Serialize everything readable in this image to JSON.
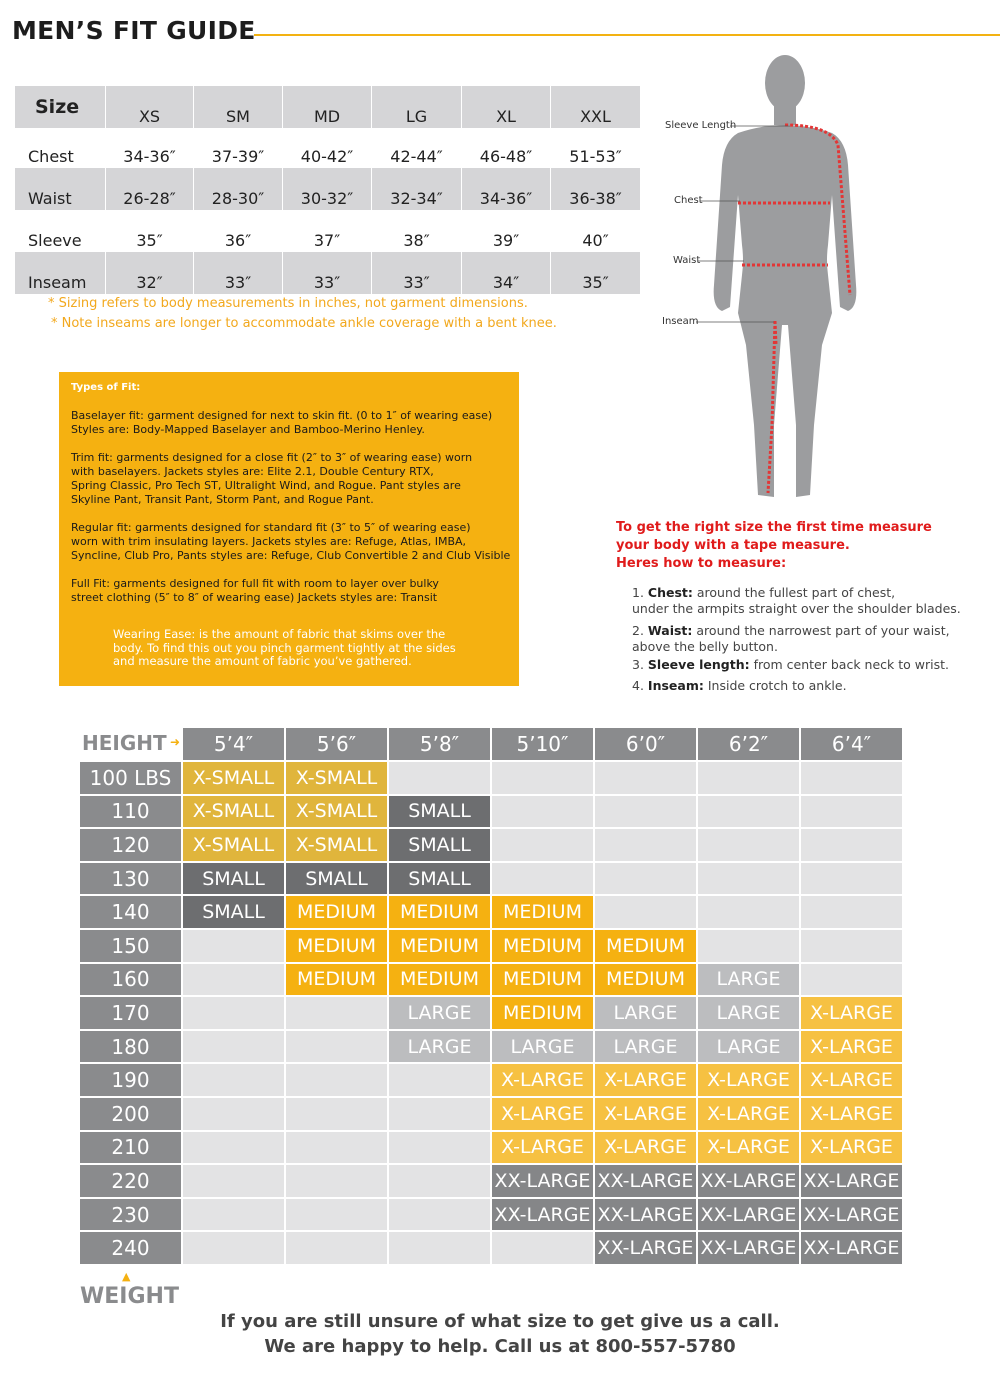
{
  "title": "MEN’S FIT GUIDE",
  "size_table": {
    "header": [
      "Size",
      "XS",
      "SM",
      "MD",
      "LG",
      "XL",
      "XXL"
    ],
    "rows": [
      [
        "Chest",
        "34-36″",
        "37-39″",
        "40-42″",
        "42-44″",
        "46-48″",
        "51-53″"
      ],
      [
        "Waist",
        "26-28″",
        "28-30″",
        "30-32″",
        "32-34″",
        "34-36″",
        "36-38″"
      ],
      [
        "Sleeve",
        "35″",
        "36″",
        "37″",
        "38″",
        "39″",
        "40″"
      ],
      [
        "Inseam",
        "32″",
        "33″",
        "33″",
        "33″",
        "34″",
        "35″"
      ]
    ],
    "notes": [
      "* Sizing refers to body measurements in inches, not garment dimensions.",
      "* Note inseams are longer to accommodate ankle coverage with a bent knee."
    ]
  },
  "fit_types": {
    "title": "Types of Fit:",
    "paragraphs": [
      [
        "Baselayer fit: garment designed for next to skin fit. (0 to 1″ of wearing ease)",
        "Styles are: Body-Mapped Baselayer and Bamboo-Merino Henley."
      ],
      [
        "Trim fit: garments designed for a close fit (2″ to 3″ of wearing ease) worn",
        "with baselayers. Jackets styles are:  Elite 2.1, Double Century RTX,",
        "Spring Classic, Pro Tech ST, Ultralight Wind, and Rogue.  Pant styles are",
        "Skyline Pant, Transit Pant, Storm Pant, and Rogue Pant."
      ],
      [
        "Regular fit: garments designed for standard fit (3″ to 5″ of wearing ease)",
        "worn with trim insulating layers. Jackets styles are: Refuge, Atlas, IMBA,",
        "Syncline, Club Pro, Pants styles are: Refuge, Club Convertible 2 and Club Visible"
      ],
      [
        "Full Fit: garments designed for full fit with room to layer over bulky",
        "street clothing (5″ to 8″ of wearing ease)  Jackets styles are: Transit"
      ]
    ],
    "wearing_ease": [
      "Wearing Ease:  is the amount of fabric that skims over the",
      "body. To find this out you pinch garment tightly at the sides",
      "and measure the amount of fabric you’ve gathered."
    ]
  },
  "figure_labels": [
    "Sleeve Length",
    "Chest",
    "Waist",
    "Inseam"
  ],
  "measure": {
    "heading": [
      "To get the right size the first time measure",
      "your body with a tape measure.",
      "Heres how to measure:"
    ],
    "items": [
      {
        "number": "1.",
        "term": "Chest:",
        "lines": [
          "around the fullest part of chest,",
          "under the armpits straight over the shoulder blades."
        ]
      },
      {
        "number": "2.",
        "term": "Waist:",
        "lines": [
          "around the narrowest part of your waist,",
          "above the belly button."
        ]
      },
      {
        "number": "3.",
        "term": "Sleeve length:",
        "lines": [
          "from center back neck to wrist."
        ]
      },
      {
        "number": "4.",
        "term": "Inseam:",
        "lines": [
          "Inside crotch to ankle."
        ]
      }
    ]
  },
  "weight_chart": {
    "height_label": "HEIGHT",
    "weight_label": "WEIGHT",
    "heights": [
      "5’4″",
      "5’6″",
      "5’8″",
      "5’10″",
      "6’0″",
      "6’2″",
      "6’4″"
    ],
    "weights": [
      "100 LBS",
      "110",
      "120",
      "130",
      "140",
      "150",
      "160",
      "170",
      "180",
      "190",
      "200",
      "210",
      "220",
      "230",
      "240"
    ],
    "size_colors": {
      "X-SMALL": "#e0b53c",
      "SMALL": "#6d6e70",
      "MEDIUM": "#f5b111",
      "LARGE": "#bcbdbf",
      "X-LARGE": "#f6c142",
      "XX-LARGE": "#858688"
    },
    "cells": [
      [
        "X-SMALL",
        "X-SMALL",
        null,
        null,
        null,
        null,
        null
      ],
      [
        "X-SMALL",
        "X-SMALL",
        "SMALL",
        null,
        null,
        null,
        null
      ],
      [
        "X-SMALL",
        "X-SMALL",
        "SMALL",
        null,
        null,
        null,
        null
      ],
      [
        "SMALL",
        "SMALL",
        "SMALL",
        null,
        null,
        null,
        null
      ],
      [
        "SMALL",
        "MEDIUM",
        "MEDIUM",
        "MEDIUM",
        null,
        null,
        null
      ],
      [
        null,
        "MEDIUM",
        "MEDIUM",
        "MEDIUM",
        "MEDIUM",
        null,
        null
      ],
      [
        null,
        "MEDIUM",
        "MEDIUM",
        "MEDIUM",
        "MEDIUM",
        "LARGE",
        null
      ],
      [
        null,
        null,
        "LARGE",
        "MEDIUM",
        "LARGE",
        "LARGE",
        "X-LARGE"
      ],
      [
        null,
        null,
        "LARGE",
        "LARGE",
        "LARGE",
        "LARGE",
        "X-LARGE"
      ],
      [
        null,
        null,
        null,
        "X-LARGE",
        "X-LARGE",
        "X-LARGE",
        "X-LARGE"
      ],
      [
        null,
        null,
        null,
        "X-LARGE",
        "X-LARGE",
        "X-LARGE",
        "X-LARGE"
      ],
      [
        null,
        null,
        null,
        "X-LARGE",
        "X-LARGE",
        "X-LARGE",
        "X-LARGE"
      ],
      [
        null,
        null,
        null,
        "XX-LARGE",
        "XX-LARGE",
        "XX-LARGE",
        "XX-LARGE"
      ],
      [
        null,
        null,
        null,
        "XX-LARGE",
        "XX-LARGE",
        "XX-LARGE",
        "XX-LARGE"
      ],
      [
        null,
        null,
        null,
        null,
        "XX-LARGE",
        "XX-LARGE",
        "XX-LARGE"
      ]
    ]
  },
  "footer": [
    "If you are still unsure of what size to get give us a call.",
    "We are happy to help.  Call us at 800-557-5780"
  ]
}
